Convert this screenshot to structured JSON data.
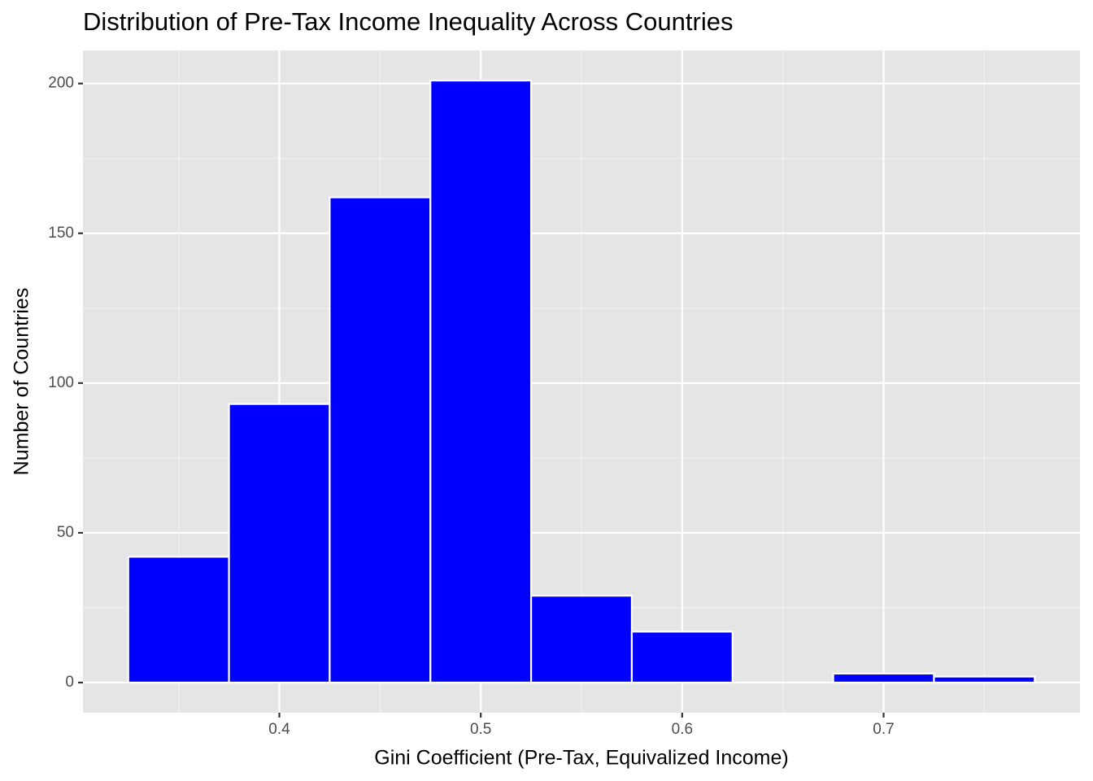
{
  "chart_data": {
    "type": "histogram",
    "title": "Distribution of Pre-Tax Income Inequality Across Countries",
    "x_label": "Gini Coefficient (Pre-Tax, Equivalized Income)",
    "y_label": "Number of Countries",
    "bins": [
      0.325,
      0.375,
      0.425,
      0.475,
      0.525,
      0.575,
      0.625,
      0.675,
      0.725,
      0.775
    ],
    "values": [
      42,
      93,
      162,
      201,
      29,
      17,
      0,
      3,
      2
    ],
    "color": "#0000ff",
    "edge_color": "#ffffff",
    "xlim": [
      0.3025,
      0.7975
    ],
    "xticks": [
      0.4,
      0.5,
      0.6,
      0.7
    ],
    "ylim": [
      -10.05,
      211.05
    ],
    "yticks": [
      0,
      50,
      100,
      150,
      200
    ],
    "grid": true
  }
}
